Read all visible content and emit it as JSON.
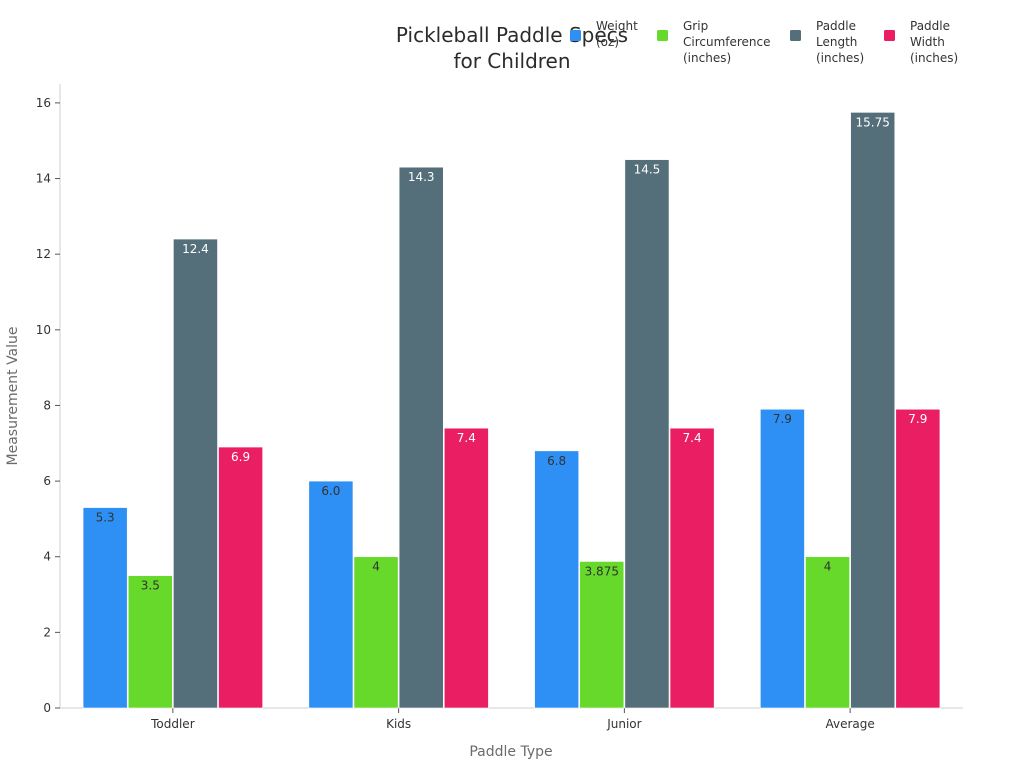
{
  "chart_data": {
    "type": "bar",
    "title_lines": [
      "Pickleball Paddle Specs",
      "for Children"
    ],
    "xlabel": "Paddle Type",
    "ylabel": "Measurement Value",
    "categories": [
      "Toddler",
      "Kids",
      "Junior",
      "Average"
    ],
    "ylim": [
      0,
      16.5
    ],
    "yticks": [
      0,
      2,
      4,
      6,
      8,
      10,
      12,
      14,
      16
    ],
    "grid": false,
    "legend_position": "top-right",
    "series": [
      {
        "name_lines": [
          "Weight",
          "(oz)"
        ],
        "color": "#2e90f5",
        "label_color": "#333333",
        "values": [
          5.3,
          6.0,
          6.8,
          7.9
        ],
        "labels": [
          "5.3",
          "6.0",
          "6.8",
          "7.9"
        ]
      },
      {
        "name_lines": [
          "Grip",
          "Circumference",
          "(inches)"
        ],
        "color": "#66d92a",
        "label_color": "#333333",
        "values": [
          3.5,
          4,
          3.875,
          4
        ],
        "labels": [
          "3.5",
          "4",
          "3.875",
          "4"
        ]
      },
      {
        "name_lines": [
          "Paddle",
          "Length",
          "(inches)"
        ],
        "color": "#546e7a",
        "label_color": "#ffffff",
        "values": [
          12.4,
          14.3,
          14.5,
          15.75
        ],
        "labels": [
          "12.4",
          "14.3",
          "14.5",
          "15.75"
        ]
      },
      {
        "name_lines": [
          "Paddle",
          "Width",
          "(inches)"
        ],
        "color": "#e91e63",
        "label_color": "#ffffff",
        "values": [
          6.9,
          7.4,
          7.4,
          7.9
        ],
        "labels": [
          "6.9",
          "7.4",
          "7.4",
          "7.9"
        ]
      }
    ]
  }
}
